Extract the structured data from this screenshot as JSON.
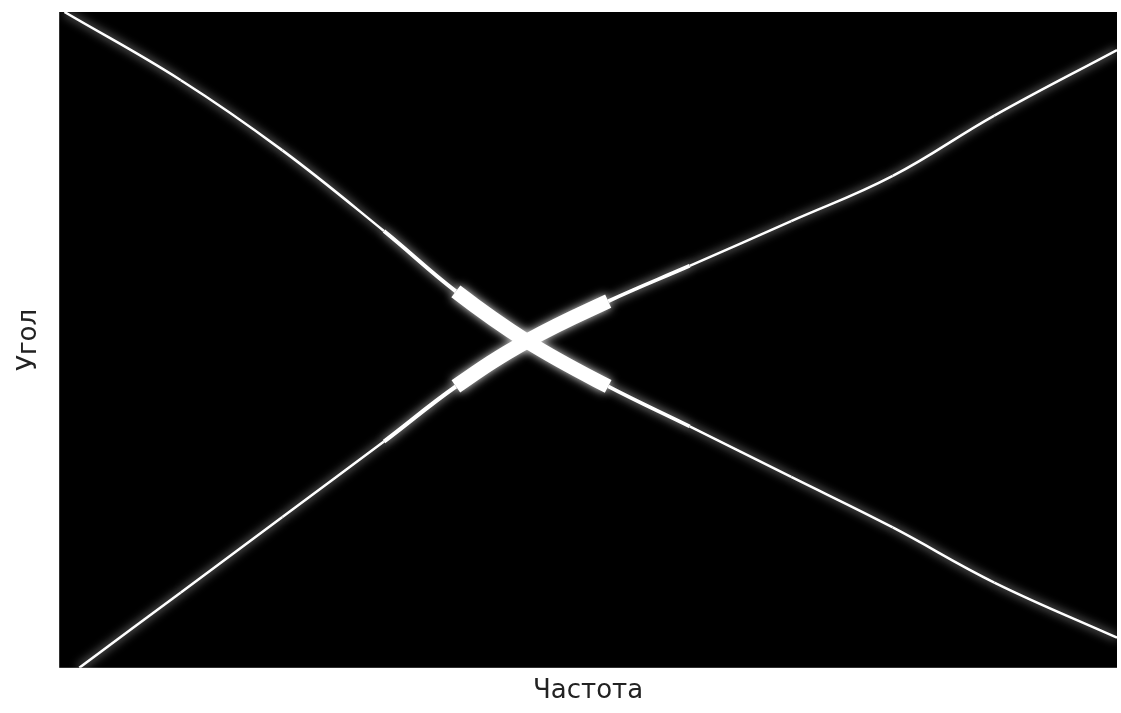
{
  "chart_data": {
    "type": "line",
    "x_label": "Частота",
    "y_label": "Угол",
    "xlim": [
      0,
      1
    ],
    "ylim": [
      0,
      1
    ],
    "tick_labels": false,
    "grid": false,
    "series": [
      {
        "color": "#ffffff",
        "x": [
          0.005,
          0.115,
          0.211,
          0.307,
          0.375,
          0.442,
          0.519,
          0.596,
          0.692,
          0.788,
          0.884,
          1.0
        ],
        "values": [
          1.0,
          0.896,
          0.789,
          0.666,
          0.574,
          0.498,
          0.429,
          0.368,
          0.291,
          0.214,
          0.13,
          0.046
        ]
      },
      {
        "color": "#ffffff",
        "x": [
          0.019,
          0.115,
          0.211,
          0.307,
          0.375,
          0.442,
          0.519,
          0.596,
          0.692,
          0.788,
          0.884,
          1.0
        ],
        "values": [
          0.0,
          0.115,
          0.23,
          0.345,
          0.429,
          0.498,
          0.559,
          0.613,
          0.681,
          0.75,
          0.842,
          0.942
        ]
      }
    ]
  }
}
